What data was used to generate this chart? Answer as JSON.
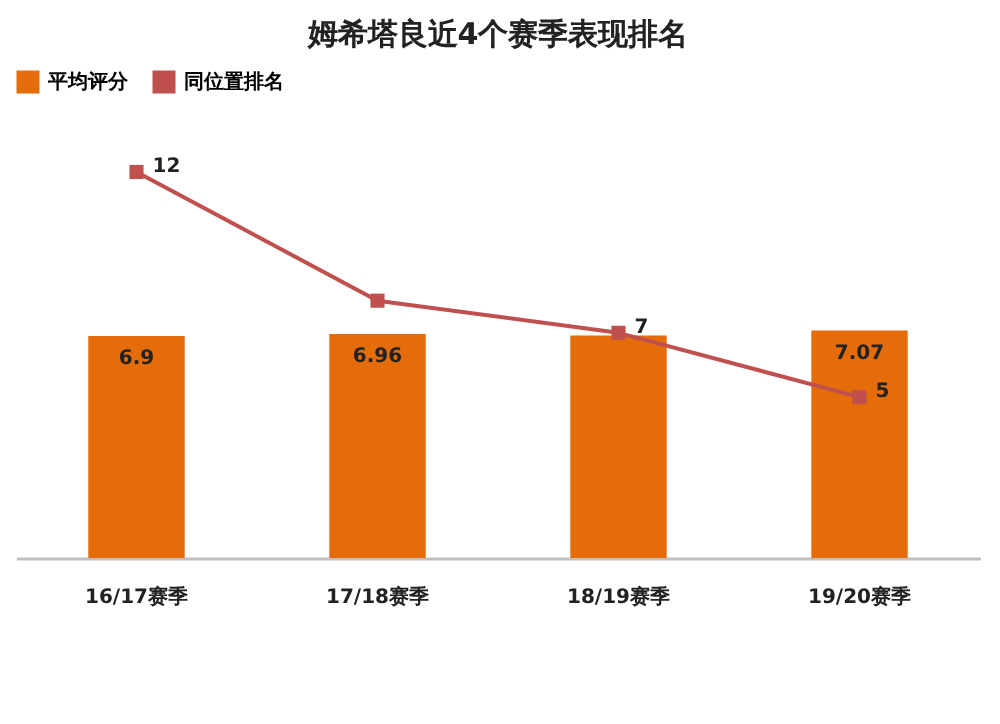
{
  "chart_data": {
    "type": "bar",
    "title": "姆希塔良近4个赛季表现排名",
    "categories": [
      "16/17赛季",
      "17/18赛季",
      "18/19赛季",
      "19/20赛季"
    ],
    "series": [
      {
        "name": "平均评分",
        "color": "#e46c0a",
        "values": [
          6.9,
          6.96,
          6.92,
          7.07
        ],
        "value_labels": [
          "6.9",
          "6.96",
          null,
          "7.07"
        ]
      },
      {
        "name": "同位置排名",
        "type": "line",
        "color": "#c0504d",
        "marker": "square",
        "values": [
          12,
          8,
          7,
          5
        ],
        "value_labels": [
          "12",
          null,
          "7",
          "5"
        ]
      }
    ],
    "tick_labels": "x",
    "legend": "top"
  }
}
